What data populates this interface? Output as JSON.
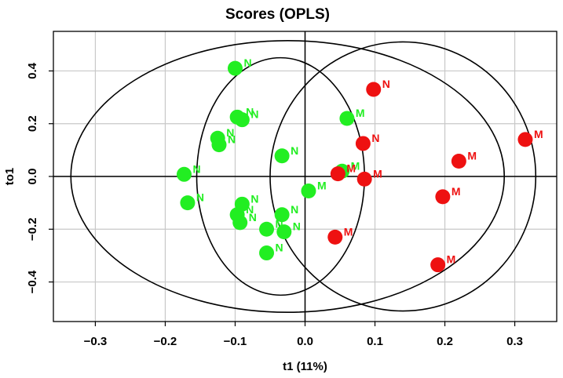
{
  "chart_data": {
    "type": "scatter",
    "title": "Scores (OPLS)",
    "xlabel": "t1 (11%)",
    "ylabel": "to1",
    "xlim": [
      -0.36,
      0.36
    ],
    "ylim": [
      -0.55,
      0.55
    ],
    "xticks": [
      -0.3,
      -0.2,
      -0.1,
      0.0,
      0.1,
      0.2,
      0.3
    ],
    "xtick_labels": [
      "−0.3",
      "−0.2",
      "−0.1",
      "0.0",
      "0.1",
      "0.2",
      "0.3"
    ],
    "yticks": [
      -0.4,
      -0.2,
      0.0,
      0.2,
      0.4
    ],
    "ytick_labels": [
      "−0.4",
      "−0.2",
      "0.0",
      "0.2",
      "0.4"
    ],
    "grid": true,
    "colors": {
      "green": "#22ee22",
      "red": "#ee1111"
    },
    "series": [
      {
        "color": "green",
        "points": [
          {
            "x": -0.1,
            "y": 0.41,
            "label": "N"
          },
          {
            "x": -0.097,
            "y": 0.225,
            "label": "N"
          },
          {
            "x": -0.09,
            "y": 0.215,
            "label": "N"
          },
          {
            "x": -0.125,
            "y": 0.145,
            "label": "N"
          },
          {
            "x": -0.123,
            "y": 0.12,
            "label": "N"
          },
          {
            "x": -0.033,
            "y": 0.078,
            "label": "N"
          },
          {
            "x": -0.173,
            "y": 0.008,
            "label": "N"
          },
          {
            "x": -0.168,
            "y": -0.1,
            "label": "N"
          },
          {
            "x": -0.09,
            "y": -0.105,
            "label": "N"
          },
          {
            "x": -0.097,
            "y": -0.145,
            "label": "N"
          },
          {
            "x": -0.093,
            "y": -0.175,
            "label": "N"
          },
          {
            "x": -0.033,
            "y": -0.145,
            "label": "N"
          },
          {
            "x": -0.03,
            "y": -0.21,
            "label": "N"
          },
          {
            "x": -0.055,
            "y": -0.2,
            "label": "N"
          },
          {
            "x": -0.055,
            "y": -0.29,
            "label": "N"
          },
          {
            "x": 0.005,
            "y": -0.055,
            "label": "M"
          },
          {
            "x": 0.06,
            "y": 0.22,
            "label": "M"
          },
          {
            "x": 0.053,
            "y": 0.02,
            "label": "M"
          }
        ]
      },
      {
        "color": "red",
        "points": [
          {
            "x": 0.098,
            "y": 0.33,
            "label": "N"
          },
          {
            "x": 0.083,
            "y": 0.125,
            "label": "N"
          },
          {
            "x": 0.047,
            "y": 0.01,
            "label": "M"
          },
          {
            "x": 0.085,
            "y": -0.01,
            "label": "M"
          },
          {
            "x": 0.043,
            "y": -0.23,
            "label": "M"
          },
          {
            "x": 0.315,
            "y": 0.14,
            "label": "M"
          },
          {
            "x": 0.22,
            "y": 0.058,
            "label": "M"
          },
          {
            "x": 0.197,
            "y": -0.077,
            "label": "M"
          },
          {
            "x": 0.19,
            "y": -0.335,
            "label": "M"
          }
        ]
      }
    ],
    "ellipses": [
      {
        "cx": -0.025,
        "cy": 0.0,
        "rx": 0.31,
        "ry": 0.515
      },
      {
        "cx": -0.035,
        "cy": 0.0,
        "rx": 0.12,
        "ry": 0.45
      },
      {
        "cx": 0.14,
        "cy": 0.0,
        "rx": 0.19,
        "ry": 0.51
      }
    ]
  }
}
